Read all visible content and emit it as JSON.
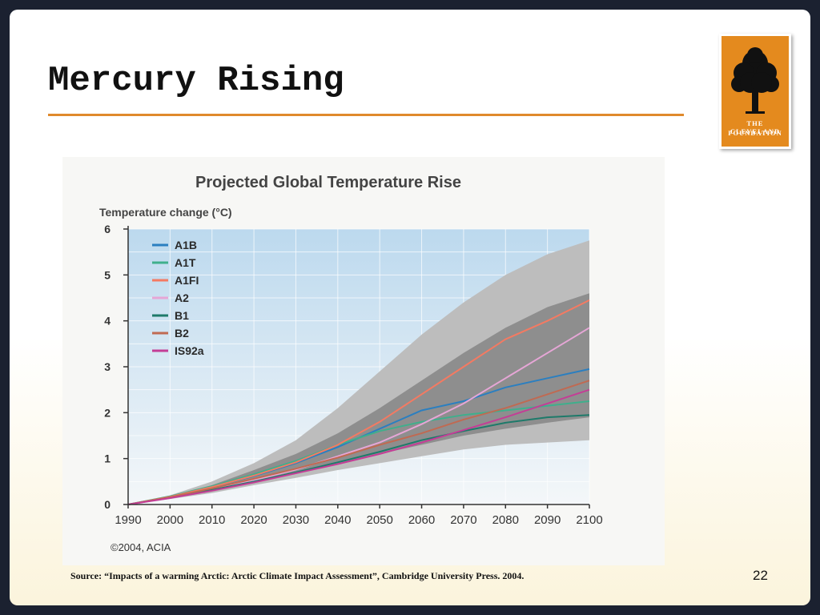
{
  "slide": {
    "title": "Mercury Rising",
    "source": "Source: “Impacts of a warming Arctic: Arctic Climate Impact Assessment”, Cambridge University Press. 2004.",
    "page_number": "22"
  },
  "logo": {
    "line1": "THE CLEVELAND",
    "line2": "FOUNDATION",
    "icon": "tree-icon",
    "color": "#e48a1e"
  },
  "chart_data": {
    "type": "line",
    "title": "Projected Global Temperature Rise",
    "ylabel": "Temperature change (°C)",
    "xlabel": "",
    "credit": "©2004, ACIA",
    "xlim": [
      1990,
      2100
    ],
    "ylim": [
      0,
      6
    ],
    "x_ticks": [
      "1990",
      "2000",
      "2010",
      "2020",
      "2030",
      "2040",
      "2050",
      "2060",
      "2070",
      "2080",
      "2090",
      "2100"
    ],
    "y_ticks": [
      "0",
      "1",
      "2",
      "3",
      "4",
      "5",
      "6"
    ],
    "grid": true,
    "legend_position": "top-left",
    "colors": {
      "plot_background_top": "#bcd9ee",
      "plot_background_bottom": "#f4f7f9",
      "outer_band": "#bdbdbd",
      "inner_band": "#8e8e8e"
    },
    "outer_band": {
      "x": [
        1990,
        2000,
        2010,
        2020,
        2030,
        2040,
        2050,
        2060,
        2070,
        2080,
        2090,
        2100
      ],
      "upper": [
        0,
        0.2,
        0.5,
        0.9,
        1.4,
        2.1,
        2.9,
        3.7,
        4.4,
        5.0,
        5.45,
        5.75
      ],
      "lower": [
        0,
        0.12,
        0.25,
        0.42,
        0.58,
        0.75,
        0.9,
        1.05,
        1.2,
        1.3,
        1.35,
        1.4
      ]
    },
    "inner_band": {
      "x": [
        1990,
        2000,
        2010,
        2020,
        2030,
        2040,
        2050,
        2060,
        2070,
        2080,
        2090,
        2100
      ],
      "upper": [
        0,
        0.18,
        0.42,
        0.75,
        1.1,
        1.55,
        2.1,
        2.7,
        3.3,
        3.85,
        4.3,
        4.6
      ],
      "lower": [
        0,
        0.14,
        0.3,
        0.5,
        0.68,
        0.9,
        1.1,
        1.3,
        1.5,
        1.65,
        1.78,
        1.9
      ]
    },
    "x": [
      1990,
      2000,
      2010,
      2020,
      2030,
      2040,
      2050,
      2060,
      2070,
      2080,
      2090,
      2100
    ],
    "series": [
      {
        "name": "A1B",
        "color": "#2b7fc0",
        "values": [
          0,
          0.17,
          0.38,
          0.62,
          0.9,
          1.25,
          1.65,
          2.05,
          2.25,
          2.55,
          2.75,
          2.95
        ]
      },
      {
        "name": "A1T",
        "color": "#3faf8c",
        "values": [
          0,
          0.18,
          0.4,
          0.66,
          0.95,
          1.3,
          1.6,
          1.8,
          1.95,
          2.05,
          2.15,
          2.25
        ]
      },
      {
        "name": "A1FI",
        "color": "#f47a62",
        "values": [
          0,
          0.17,
          0.38,
          0.63,
          0.92,
          1.3,
          1.8,
          2.4,
          3.0,
          3.6,
          4.0,
          4.45
        ]
      },
      {
        "name": "A2",
        "color": "#e6a6d6",
        "values": [
          0,
          0.15,
          0.33,
          0.53,
          0.76,
          1.05,
          1.35,
          1.75,
          2.2,
          2.75,
          3.3,
          3.85
        ]
      },
      {
        "name": "B1",
        "color": "#1e7a6a",
        "values": [
          0,
          0.15,
          0.32,
          0.5,
          0.7,
          0.92,
          1.15,
          1.4,
          1.6,
          1.78,
          1.9,
          1.95
        ]
      },
      {
        "name": "B2",
        "color": "#c06a52",
        "values": [
          0,
          0.16,
          0.35,
          0.56,
          0.78,
          1.02,
          1.3,
          1.55,
          1.85,
          2.1,
          2.4,
          2.7
        ]
      },
      {
        "name": "IS92a",
        "color": "#c43d96",
        "values": [
          0,
          0.14,
          0.3,
          0.48,
          0.68,
          0.88,
          1.1,
          1.35,
          1.62,
          1.9,
          2.2,
          2.5
        ]
      }
    ]
  }
}
